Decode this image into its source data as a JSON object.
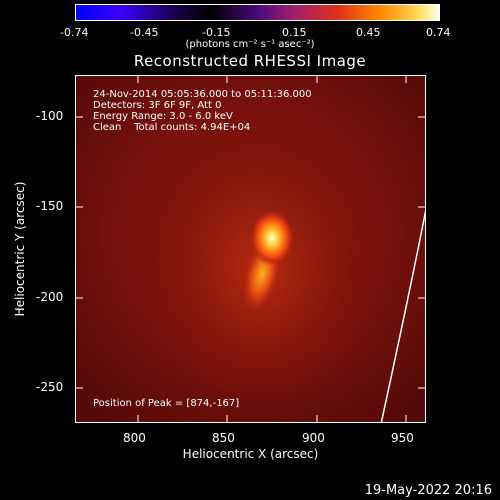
{
  "colorbar": {
    "ticks": [
      "-0.74",
      "-0.45",
      "-0.15",
      "0.15",
      "0.45",
      "0.74"
    ],
    "units": "(photons cm⁻² s⁻¹ asec⁻²)"
  },
  "title": "Reconstructed RHESSI Image",
  "axes": {
    "xlabel": "Heliocentric X (arcsec)",
    "ylabel": "Heliocentric Y (arcsec)",
    "xticks": [
      "800",
      "850",
      "900",
      "950"
    ],
    "yticks": [
      "-100",
      "-150",
      "-200",
      "-250"
    ]
  },
  "info": {
    "time_range": "24-Nov-2014 05:05:36.000 to 05:11:36.000",
    "detectors": "Detectors: 3F 6F 9F, Att 0",
    "energy": "Energy Range: 3.0 - 6.0 keV",
    "clean": "Clean    Total counts: 4.94E+04",
    "peak": "Position of Peak = [874,-167]"
  },
  "footer_date": "19-May-2022 20:16"
}
